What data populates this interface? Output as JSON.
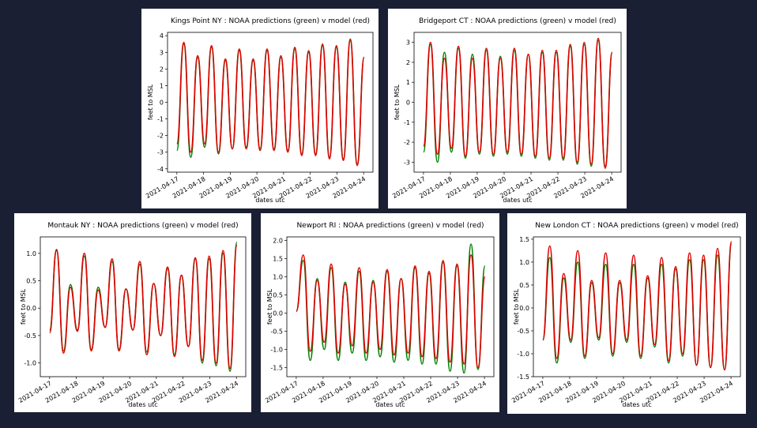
{
  "chart_data": [
    {
      "type": "line",
      "title": "Kings Point NY : NOAA predictions (green) v model (red)",
      "xlabel": "dates utc",
      "ylabel": "feet to MSL",
      "x": [
        0,
        0.26,
        0.52,
        0.78,
        1.04,
        1.3,
        1.56,
        1.82,
        2.08,
        2.34,
        2.6,
        2.86,
        3.12,
        3.38,
        3.64,
        3.9,
        4.16,
        4.42,
        4.68,
        4.94,
        5.2,
        5.46,
        5.72,
        5.98,
        6.24,
        6.5,
        6.76,
        7.02
      ],
      "xlim": [
        -0.35,
        7.35
      ],
      "xticks": [
        {
          "value": 0,
          "label": "2021-04-17"
        },
        {
          "value": 1,
          "label": "2021-04-18"
        },
        {
          "value": 2,
          "label": "2021-04-19"
        },
        {
          "value": 3,
          "label": "2021-04-20"
        },
        {
          "value": 4,
          "label": "2021-04-21"
        },
        {
          "value": 5,
          "label": "2021-04-22"
        },
        {
          "value": 6,
          "label": "2021-04-23"
        },
        {
          "value": 7,
          "label": "2021-04-24"
        }
      ],
      "ylim": [
        -4.2,
        4.2
      ],
      "yticks": [
        -4,
        -3,
        -2,
        -1,
        0,
        1,
        2,
        3,
        4
      ],
      "series": [
        {
          "color": "#008000",
          "values": [
            -2.9,
            3.5,
            -3.3,
            2.7,
            -2.7,
            3.3,
            -3.1,
            2.5,
            -2.8,
            3.1,
            -2.7,
            2.5,
            -2.8,
            3.1,
            -2.8,
            2.7,
            -2.9,
            3.2,
            -3.1,
            3.0,
            -3.1,
            3.4,
            -3.3,
            3.3,
            -3.4,
            3.7,
            -3.7,
            2.7
          ]
        },
        {
          "color": "#e00000",
          "values": [
            -2.5,
            3.6,
            -3.0,
            2.8,
            -2.5,
            3.4,
            -3.0,
            2.6,
            -2.8,
            3.2,
            -2.8,
            2.6,
            -2.9,
            3.2,
            -2.9,
            2.8,
            -3.0,
            3.3,
            -3.2,
            3.1,
            -3.2,
            3.5,
            -3.4,
            3.4,
            -3.5,
            3.8,
            -3.8,
            2.7
          ]
        }
      ]
    },
    {
      "type": "line",
      "title": "Bridgeport CT : NOAA predictions (green) v model (red)",
      "xlabel": "dates utc",
      "ylabel": "feet to MSL",
      "x": [
        0,
        0.26,
        0.52,
        0.78,
        1.04,
        1.3,
        1.56,
        1.82,
        2.08,
        2.34,
        2.6,
        2.86,
        3.12,
        3.38,
        3.64,
        3.9,
        4.16,
        4.42,
        4.68,
        4.94,
        5.2,
        5.46,
        5.72,
        5.98,
        6.24,
        6.5,
        6.76,
        7.02
      ],
      "xlim": [
        -0.35,
        7.35
      ],
      "xticks": [
        {
          "value": 0,
          "label": "2021-04-17"
        },
        {
          "value": 1,
          "label": "2021-04-18"
        },
        {
          "value": 2,
          "label": "2021-04-19"
        },
        {
          "value": 3,
          "label": "2021-04-20"
        },
        {
          "value": 4,
          "label": "2021-04-21"
        },
        {
          "value": 5,
          "label": "2021-04-22"
        },
        {
          "value": 6,
          "label": "2021-04-23"
        },
        {
          "value": 7,
          "label": "2021-04-24"
        }
      ],
      "ylim": [
        -3.5,
        3.5
      ],
      "yticks": [
        -3,
        -2,
        -1,
        0,
        1,
        2,
        3
      ],
      "series": [
        {
          "color": "#008000",
          "values": [
            -2.5,
            2.9,
            -3.0,
            2.5,
            -2.5,
            2.7,
            -2.8,
            2.4,
            -2.6,
            2.6,
            -2.7,
            2.3,
            -2.6,
            2.6,
            -2.7,
            2.4,
            -2.8,
            2.5,
            -2.9,
            2.5,
            -2.9,
            2.8,
            -3.1,
            2.9,
            -3.2,
            3.1,
            -3.2,
            2.5
          ]
        },
        {
          "color": "#e00000",
          "values": [
            -2.2,
            3.0,
            -2.6,
            2.2,
            -2.3,
            2.8,
            -2.7,
            2.2,
            -2.5,
            2.7,
            -2.6,
            2.2,
            -2.5,
            2.7,
            -2.6,
            2.4,
            -2.7,
            2.6,
            -2.8,
            2.6,
            -2.8,
            2.9,
            -3.0,
            3.0,
            -3.1,
            3.2,
            -3.3,
            2.5
          ]
        }
      ]
    },
    {
      "type": "line",
      "title": "Montauk NY : NOAA predictions (green) v model (red)",
      "xlabel": "dates utc",
      "ylabel": "feet to MSL",
      "x": [
        0,
        0.26,
        0.52,
        0.78,
        1.04,
        1.3,
        1.56,
        1.82,
        2.08,
        2.34,
        2.6,
        2.86,
        3.12,
        3.38,
        3.64,
        3.9,
        4.16,
        4.42,
        4.68,
        4.94,
        5.2,
        5.46,
        5.72,
        5.98,
        6.24,
        6.5,
        6.76,
        7.02
      ],
      "xlim": [
        -0.35,
        7.35
      ],
      "xticks": [
        {
          "value": 0,
          "label": "2021-04-17"
        },
        {
          "value": 1,
          "label": "2021-04-18"
        },
        {
          "value": 2,
          "label": "2021-04-19"
        },
        {
          "value": 3,
          "label": "2021-04-20"
        },
        {
          "value": 4,
          "label": "2021-04-21"
        },
        {
          "value": 5,
          "label": "2021-04-22"
        },
        {
          "value": 6,
          "label": "2021-04-23"
        },
        {
          "value": 7,
          "label": "2021-04-24"
        }
      ],
      "ylim": [
        -1.25,
        1.3
      ],
      "yticks": [
        {
          "value": -1,
          "label": "-1.0"
        },
        -0.5,
        {
          "value": 0,
          "label": "0.0"
        },
        0.5,
        {
          "value": 1,
          "label": "1.0"
        }
      ],
      "series": [
        {
          "color": "#008000",
          "values": [
            -0.4,
            1.05,
            -0.78,
            0.43,
            -0.4,
            0.95,
            -0.75,
            0.38,
            -0.35,
            0.85,
            -0.75,
            0.35,
            -0.4,
            0.8,
            -0.8,
            0.45,
            -0.5,
            0.72,
            -0.85,
            0.6,
            -0.7,
            0.9,
            -1.0,
            0.9,
            -1.05,
            1.0,
            -1.15,
            1.2
          ]
        },
        {
          "color": "#e00000",
          "values": [
            -0.45,
            1.07,
            -0.82,
            0.38,
            -0.42,
            1.0,
            -0.78,
            0.33,
            -0.35,
            0.9,
            -0.78,
            0.35,
            -0.4,
            0.85,
            -0.85,
            0.45,
            -0.5,
            0.75,
            -0.88,
            0.6,
            -0.7,
            0.92,
            -0.95,
            0.95,
            -1.0,
            1.05,
            -1.1,
            1.15
          ]
        }
      ]
    },
    {
      "type": "line",
      "title": "Newport RI : NOAA predictions (green) v model (red)",
      "xlabel": "dates utc",
      "ylabel": "feet to MSL",
      "x": [
        0,
        0.26,
        0.52,
        0.78,
        1.04,
        1.3,
        1.56,
        1.82,
        2.08,
        2.34,
        2.6,
        2.86,
        3.12,
        3.38,
        3.64,
        3.9,
        4.16,
        4.42,
        4.68,
        4.94,
        5.2,
        5.46,
        5.72,
        5.98,
        6.24,
        6.5,
        6.76,
        7.02
      ],
      "xlim": [
        -0.35,
        7.35
      ],
      "xticks": [
        {
          "value": 0,
          "label": "2021-04-17"
        },
        {
          "value": 1,
          "label": "2021-04-18"
        },
        {
          "value": 2,
          "label": "2021-04-19"
        },
        {
          "value": 3,
          "label": "2021-04-20"
        },
        {
          "value": 4,
          "label": "2021-04-21"
        },
        {
          "value": 5,
          "label": "2021-04-22"
        },
        {
          "value": 6,
          "label": "2021-04-23"
        },
        {
          "value": 7,
          "label": "2021-04-24"
        }
      ],
      "ylim": [
        -1.75,
        2.1
      ],
      "yticks": [
        -1.5,
        {
          "value": -1,
          "label": "-1.0"
        },
        -0.5,
        {
          "value": 0,
          "label": "0.0"
        },
        0.5,
        {
          "value": 1,
          "label": "1.0"
        },
        1.5,
        {
          "value": 2,
          "label": "2.0"
        }
      ],
      "series": [
        {
          "color": "#008000",
          "values": [
            0.05,
            1.45,
            -1.3,
            0.95,
            -1.0,
            1.25,
            -1.3,
            0.85,
            -1.1,
            1.15,
            -1.3,
            0.9,
            -1.2,
            1.15,
            -1.35,
            0.95,
            -1.3,
            1.25,
            -1.4,
            1.1,
            -1.4,
            1.4,
            -1.6,
            1.3,
            -1.65,
            1.9,
            -1.55,
            1.3
          ]
        },
        {
          "color": "#e00000",
          "values": [
            0.05,
            1.6,
            -1.05,
            0.9,
            -0.8,
            1.35,
            -1.1,
            0.8,
            -0.9,
            1.25,
            -1.1,
            0.85,
            -1.0,
            1.2,
            -1.15,
            0.95,
            -1.1,
            1.3,
            -1.2,
            1.15,
            -1.25,
            1.45,
            -1.35,
            1.35,
            -1.4,
            1.6,
            -1.5,
            1.0
          ]
        }
      ]
    },
    {
      "type": "line",
      "title": "New London CT : NOAA predictions (green) v model (red)",
      "xlabel": "dates utc",
      "ylabel": "feet to MSL",
      "x": [
        0,
        0.26,
        0.52,
        0.78,
        1.04,
        1.3,
        1.56,
        1.82,
        2.08,
        2.34,
        2.6,
        2.86,
        3.12,
        3.38,
        3.64,
        3.9,
        4.16,
        4.42,
        4.68,
        4.94,
        5.2,
        5.46,
        5.72,
        5.98,
        6.24,
        6.5,
        6.76,
        7.02
      ],
      "xlim": [
        -0.35,
        7.35
      ],
      "xticks": [
        {
          "value": 0,
          "label": "2021-04-17"
        },
        {
          "value": 1,
          "label": "2021-04-18"
        },
        {
          "value": 2,
          "label": "2021-04-19"
        },
        {
          "value": 3,
          "label": "2021-04-20"
        },
        {
          "value": 4,
          "label": "2021-04-21"
        },
        {
          "value": 5,
          "label": "2021-04-22"
        },
        {
          "value": 6,
          "label": "2021-04-23"
        },
        {
          "value": 7,
          "label": "2021-04-24"
        }
      ],
      "ylim": [
        -1.5,
        1.55
      ],
      "yticks": [
        -1.5,
        {
          "value": -1,
          "label": "-1.0"
        },
        -0.5,
        {
          "value": 0,
          "label": "0.0"
        },
        0.5,
        {
          "value": 1,
          "label": "1.0"
        },
        1.5
      ],
      "series": [
        {
          "color": "#008000",
          "values": [
            -0.7,
            1.1,
            -1.2,
            0.65,
            -0.75,
            1.0,
            -1.1,
            0.55,
            -0.7,
            0.95,
            -1.05,
            0.55,
            -0.75,
            0.95,
            -1.1,
            0.65,
            -0.85,
            0.95,
            -1.2,
            0.85,
            -1.05,
            1.05,
            -1.25,
            1.05,
            -1.3,
            1.15,
            -1.35,
            1.4
          ]
        },
        {
          "color": "#e00000",
          "values": [
            -0.7,
            1.35,
            -1.1,
            0.75,
            -0.7,
            1.25,
            -1.05,
            0.6,
            -0.65,
            1.2,
            -1.0,
            0.6,
            -0.7,
            1.15,
            -1.05,
            0.7,
            -0.8,
            1.1,
            -1.15,
            0.9,
            -1.0,
            1.2,
            -1.25,
            1.15,
            -1.3,
            1.3,
            -1.35,
            1.45
          ]
        }
      ]
    }
  ]
}
